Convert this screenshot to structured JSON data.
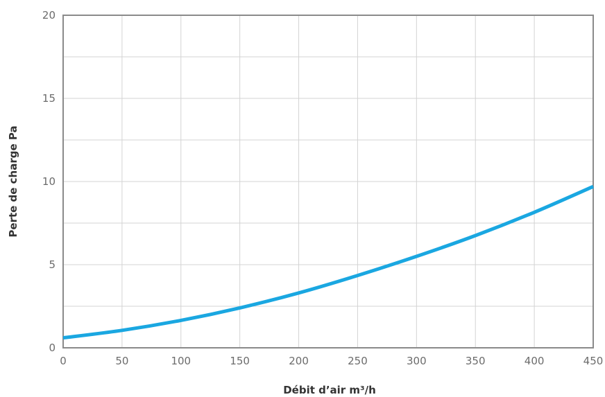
{
  "chart_data": {
    "type": "line",
    "title": "",
    "xlabel": "Débit d’air m³/h",
    "ylabel": "Perte de charge Pa",
    "xlim": [
      0,
      450
    ],
    "ylim": [
      0,
      20
    ],
    "x_ticks": [
      0,
      50,
      100,
      150,
      200,
      250,
      300,
      350,
      400,
      450
    ],
    "y_ticks": [
      0,
      5,
      10,
      15,
      20
    ],
    "x_minor_step": 50,
    "y_minor_step": 2.5,
    "grid": true,
    "legend": "none",
    "series": [
      {
        "color": "#1aa7e1",
        "x": [
          0,
          50,
          100,
          150,
          200,
          250,
          300,
          350,
          400,
          450
        ],
        "y": [
          0.6,
          1.05,
          1.65,
          2.4,
          3.3,
          4.35,
          5.5,
          6.75,
          8.15,
          9.7
        ]
      }
    ]
  }
}
